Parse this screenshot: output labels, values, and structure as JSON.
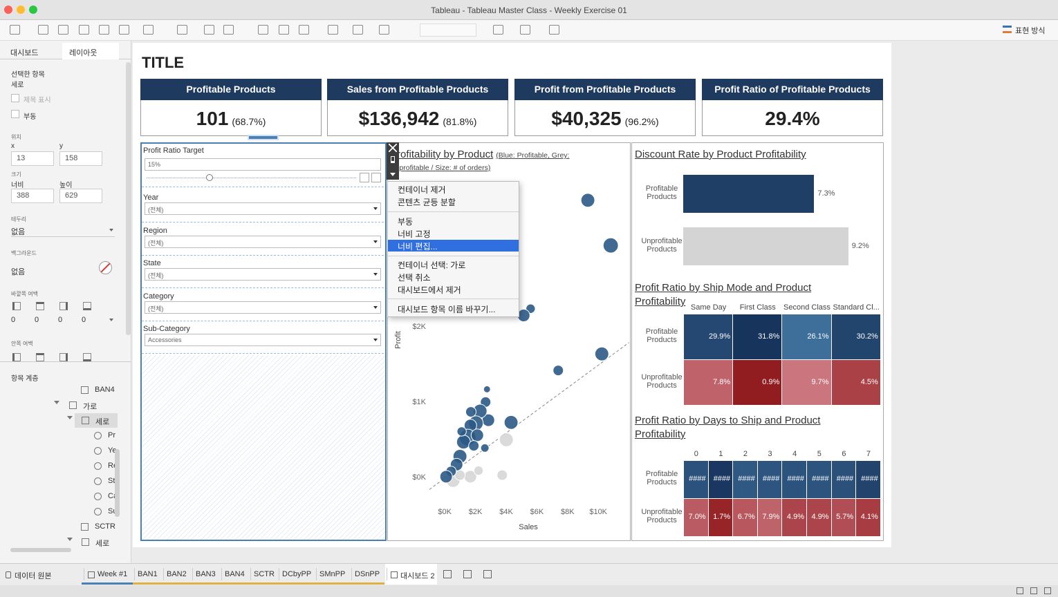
{
  "window": {
    "title": "Tableau - Tableau Master Class - Weekly Exercise 01"
  },
  "toolbar": {
    "show_me": "표현 방식"
  },
  "sidebar": {
    "tabs": [
      "대시보드",
      "레이아웃"
    ],
    "selected_label": "선택한 항목",
    "selected_value": "세로",
    "show_title": "제목 표시",
    "floating": "부동",
    "position_label": "위치",
    "x_label": "x",
    "y_label": "y",
    "x": "13",
    "y": "158",
    "size_label": "크기",
    "width_label": "너비",
    "height_label": "높이",
    "width": "388",
    "height": "629",
    "border_label": "테두리",
    "border": "없음",
    "background_label": "백그라운드",
    "background": "없음",
    "outer_padding_label": "바깥쪽 여백",
    "outer_padding": [
      "0",
      "0",
      "0",
      "0"
    ],
    "inner_padding_label": "안쪽 여백",
    "hierarchy_label": "항목 계층",
    "tree": [
      "BAN4",
      "가로",
      "세로",
      "Pr",
      "Ye",
      "Re",
      "St",
      "Ca",
      "Su",
      "SCTR",
      "세로"
    ]
  },
  "dashboard": {
    "title": "TITLE",
    "kpis": [
      {
        "title": "Profitable Products",
        "value": "101",
        "share": "(68.7%)"
      },
      {
        "title": "Sales from Profitable Products",
        "value": "$136,942",
        "share": "(81.8%)"
      },
      {
        "title": "Profit from Profitable Products",
        "value": "$40,325",
        "share": "(96.2%)"
      },
      {
        "title": "Profit Ratio of Profitable Products",
        "value": "29.4%"
      }
    ],
    "filters": [
      {
        "label": "Profit Ratio Target",
        "value": 15,
        "value_label": "15%"
      },
      {
        "label": "Year",
        "value": "(전체)"
      },
      {
        "label": "Region",
        "value": "(전체)"
      },
      {
        "label": "State",
        "value": "(전체)"
      },
      {
        "label": "Category",
        "value": "(전체)"
      },
      {
        "label": "Sub-Category",
        "value": "Accessories"
      }
    ]
  },
  "chart_data": [
    {
      "type": "scatter",
      "title": "Profitability by Product",
      "subtitle": "(Blue: Profitable, Grey: Unprofitable / Size: # of orders)",
      "x_label": "Sales",
      "y_label": "Profit",
      "xlim": [
        -1000,
        12000
      ],
      "ylim": [
        -300,
        4000
      ],
      "xticks": [
        {
          "value": 0,
          "label": "$0K"
        },
        {
          "value": 2000,
          "label": "$2K"
        },
        {
          "value": 4000,
          "label": "$4K"
        },
        {
          "value": 6000,
          "label": "$6K"
        },
        {
          "value": 8000,
          "label": "$8K"
        },
        {
          "value": 10000,
          "label": "$10K"
        }
      ],
      "yticks": [
        {
          "value": 0,
          "label": "$0K"
        },
        {
          "value": 1000,
          "label": "$1K"
        },
        {
          "value": 2000,
          "label": "$2K"
        }
      ],
      "series": [
        {
          "color": "#2b5a86",
          "x": [
            9320,
            10810,
            5590,
            5140,
            10230,
            7390,
            4320,
            2750,
            2660,
            2840,
            2610,
            2300,
            2030,
            1670,
            1490,
            1220,
            990,
            770,
            410,
            90,
            2120,
            1890,
            1100,
            1700
          ],
          "y": [
            3690,
            3090,
            2250,
            2160,
            1650,
            1430,
            740,
            1180,
            1010,
            770,
            400,
            890,
            730,
            700,
            540,
            480,
            290,
            180,
            90,
            20,
            570,
            430,
            620,
            880
          ],
          "size": [
            44,
            53,
            20,
            36,
            44,
            25,
            44,
            11,
            25,
            36,
            16,
            44,
            49,
            36,
            64,
            44,
            44,
            36,
            25,
            36,
            36,
            25,
            20,
            25
          ]
        },
        {
          "color": "#d6d6d6",
          "x": [
            4010,
            3740,
            1670,
            540,
            990,
            2200
          ],
          "y": [
            510,
            40,
            20,
            -30,
            40,
            100
          ],
          "size": [
            44,
            25,
            36,
            44,
            25,
            20
          ]
        }
      ]
    },
    {
      "type": "bar",
      "title": "Discount Rate by Product Profitability",
      "categories": [
        "Profitable Products",
        "Unprofitable Products"
      ],
      "values": [
        7.3,
        9.2
      ],
      "value_labels": [
        "7.3%",
        "9.2%"
      ],
      "colors": [
        "#1f3f66",
        "#d4d4d4"
      ],
      "xlim": [
        0,
        11.1
      ]
    },
    {
      "type": "heatmap",
      "title": "Profit Ratio by Ship Mode and Product Profitability",
      "columns": [
        "Same Day",
        "First Class",
        "Second Class",
        "Standard Cl..."
      ],
      "rows": [
        "Profitable Products",
        "Unprofitable Products"
      ],
      "values": [
        [
          29.9,
          31.8,
          26.1,
          30.2
        ],
        [
          7.8,
          0.9,
          9.7,
          4.5
        ]
      ],
      "value_labels": [
        [
          "29.9%",
          "31.8%",
          "26.1%",
          "30.2%"
        ],
        [
          "7.8%",
          "0.9%",
          "9.7%",
          "4.5%"
        ]
      ]
    },
    {
      "type": "heatmap",
      "title": "Profit Ratio by Days to Ship and Product Profitability",
      "columns": [
        0,
        1,
        2,
        3,
        4,
        5,
        6,
        7
      ],
      "rows": [
        "Profitable Products",
        "Unprofitable Products"
      ],
      "values": [
        [
          28.9,
          31.5,
          28.3,
          28.6,
          28.8,
          28.7,
          29.0,
          30.4
        ],
        [
          7.0,
          1.7,
          6.7,
          7.9,
          4.9,
          4.9,
          5.7,
          4.1
        ]
      ],
      "value_labels": [
        [
          "####",
          "####",
          "####",
          "####",
          "####",
          "####",
          "####",
          "####"
        ],
        [
          "7.0%",
          "1.7%",
          "6.7%",
          "7.9%",
          "4.9%",
          "4.9%",
          "5.7%",
          "4.1%"
        ]
      ]
    }
  ],
  "menu": {
    "items": [
      "컨테이너 제거",
      "콘텐츠 균등 분할",
      "부동",
      "너비 고정",
      "너비 편집...",
      "컨테이너 선택: 가로",
      "선택 취소",
      "대시보드에서 제거",
      "대시보드 항목 이름 바꾸기..."
    ]
  },
  "tabs": {
    "data_source": "데이터 원본",
    "sheets": [
      "Week #1",
      "BAN1",
      "BAN2",
      "BAN3",
      "BAN4",
      "SCTR",
      "DCbyPP",
      "SMnPP",
      "DSnPP",
      "대시보드 2"
    ]
  }
}
